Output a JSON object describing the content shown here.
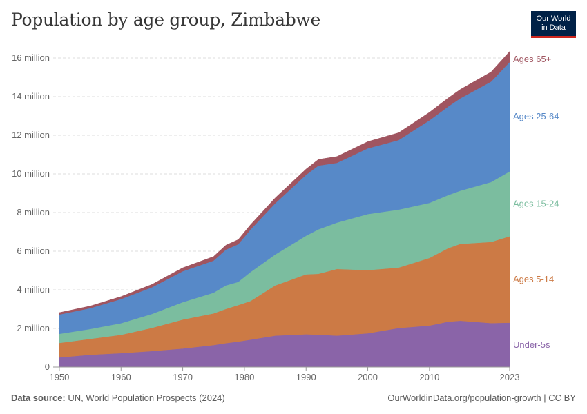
{
  "header": {
    "title": "Population by age group, Zimbabwe",
    "logo_line1": "Our World",
    "logo_line2": "in Data"
  },
  "footer": {
    "source_label": "Data source:",
    "source_text": "UN, World Population Prospects (2024)",
    "url_text": "OurWorldinData.org/population-growth | CC BY"
  },
  "colors": {
    "under5": "#8a64a8",
    "age5_14": "#cc7a45",
    "age15_24": "#7bbd9f",
    "age25_64": "#5789c8",
    "age65": "#a05560",
    "logo_bg": "#002147",
    "logo_accent": "#ce261e"
  },
  "chart_data": {
    "type": "area",
    "stacked": true,
    "title": "Population by age group, Zimbabwe",
    "x": [
      1950,
      1955,
      1960,
      1965,
      1970,
      1975,
      1977,
      1979,
      1981,
      1985,
      1990,
      1992,
      1995,
      2000,
      2005,
      2010,
      2013,
      2015,
      2020,
      2023
    ],
    "series": [
      {
        "name": "Under-5s",
        "color": "#8a64a8",
        "values": [
          0.5,
          0.64,
          0.72,
          0.83,
          0.96,
          1.14,
          1.24,
          1.32,
          1.42,
          1.63,
          1.7,
          1.68,
          1.63,
          1.75,
          2.02,
          2.15,
          2.35,
          2.4,
          2.28,
          2.3
        ]
      },
      {
        "name": "Ages 5-14",
        "color": "#cc7a45",
        "values": [
          0.75,
          0.82,
          0.95,
          1.2,
          1.5,
          1.64,
          1.77,
          1.89,
          2.0,
          2.6,
          3.1,
          3.15,
          3.45,
          3.27,
          3.13,
          3.5,
          3.8,
          3.98,
          4.2,
          4.47
        ]
      },
      {
        "name": "Ages 15-24",
        "color": "#7bbd9f",
        "values": [
          0.47,
          0.51,
          0.6,
          0.72,
          0.9,
          1.07,
          1.22,
          1.2,
          1.5,
          1.6,
          2.0,
          2.3,
          2.4,
          2.9,
          3.0,
          2.85,
          2.75,
          2.75,
          3.1,
          3.36
        ]
      },
      {
        "name": "Ages 25-64",
        "color": "#5789c8",
        "values": [
          1.0,
          1.08,
          1.25,
          1.38,
          1.6,
          1.66,
          1.85,
          1.95,
          2.2,
          2.65,
          3.15,
          3.3,
          3.09,
          3.4,
          3.6,
          4.27,
          4.58,
          4.78,
          5.2,
          5.66
        ]
      },
      {
        "name": "Ages 65+",
        "color": "#a05560",
        "values": [
          0.1,
          0.11,
          0.13,
          0.15,
          0.18,
          0.21,
          0.23,
          0.24,
          0.25,
          0.28,
          0.3,
          0.32,
          0.33,
          0.35,
          0.38,
          0.42,
          0.44,
          0.46,
          0.5,
          0.55
        ]
      }
    ],
    "xlim": [
      1949,
      2023
    ],
    "ylim": [
      0,
      16.5
    ],
    "yticks": [
      {
        "value": 0,
        "label": "0"
      },
      {
        "value": 2,
        "label": "2 million"
      },
      {
        "value": 4,
        "label": "4 million"
      },
      {
        "value": 6,
        "label": "6 million"
      },
      {
        "value": 8,
        "label": "8 million"
      },
      {
        "value": 10,
        "label": "10 million"
      },
      {
        "value": 12,
        "label": "12 million"
      },
      {
        "value": 14,
        "label": "14 million"
      },
      {
        "value": 16,
        "label": "16 million"
      }
    ],
    "xticks": [
      {
        "value": 1950,
        "label": "1950"
      },
      {
        "value": 1960,
        "label": "1960"
      },
      {
        "value": 1970,
        "label": "1970"
      },
      {
        "value": 1980,
        "label": "1980"
      },
      {
        "value": 1990,
        "label": "1990"
      },
      {
        "value": 2000,
        "label": "2000"
      },
      {
        "value": 2010,
        "label": "2010"
      },
      {
        "value": 2023,
        "label": "2023"
      }
    ],
    "grid": true,
    "legend": "right"
  }
}
